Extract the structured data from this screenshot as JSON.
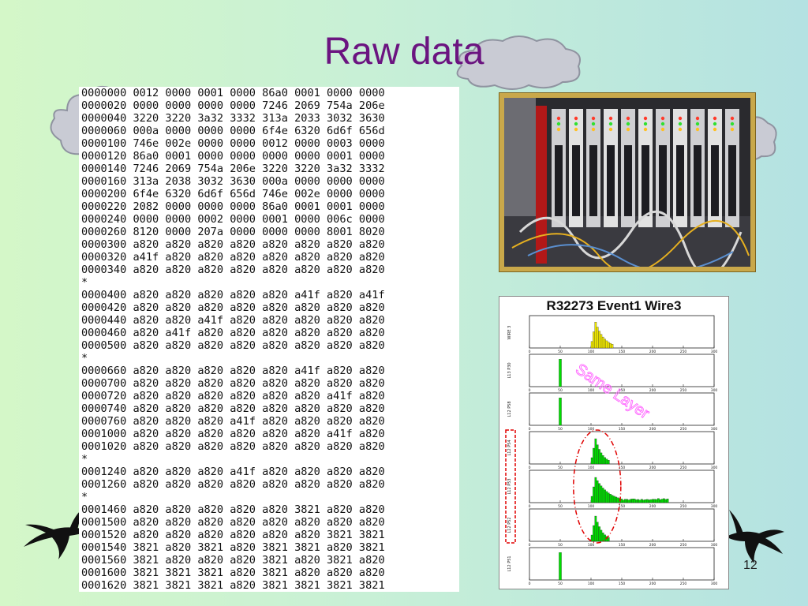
{
  "slide": {
    "title": "Raw data",
    "page_number": "12"
  },
  "hex_dump": [
    "0000000 0012 0000 0001 0000 86a0 0001 0000 0000",
    "0000020 0000 0000 0000 0000 7246 2069 754a 206e",
    "0000040 3220 3220 3a32 3332 313a 2033 3032 3630",
    "0000060 000a 0000 0000 0000 6f4e 6320 6d6f 656d",
    "0000100 746e 002e 0000 0000 0012 0000 0003 0000",
    "0000120 86a0 0001 0000 0000 0000 0000 0001 0000",
    "0000140 7246 2069 754a 206e 3220 3220 3a32 3332",
    "0000160 313a 2038 3032 3630 000a 0000 0000 0000",
    "0000200 6f4e 6320 6d6f 656d 746e 002e 0000 0000",
    "0000220 2082 0000 0000 0000 86a0 0001 0001 0000",
    "0000240 0000 0000 0002 0000 0001 0000 006c 0000",
    "0000260 8120 0000 207a 0000 0000 0000 8001 8020",
    "0000300 a820 a820 a820 a820 a820 a820 a820 a820",
    "0000320 a41f a820 a820 a820 a820 a820 a820 a820",
    "0000340 a820 a820 a820 a820 a820 a820 a820 a820",
    "*",
    "0000400 a820 a820 a820 a820 a820 a41f a820 a41f",
    "0000420 a820 a820 a820 a820 a820 a820 a820 a820",
    "0000440 a820 a820 a41f a820 a820 a820 a820 a820",
    "0000460 a820 a41f a820 a820 a820 a820 a820 a820",
    "0000500 a820 a820 a820 a820 a820 a820 a820 a820",
    "*",
    "0000660 a820 a820 a820 a820 a820 a41f a820 a820",
    "0000700 a820 a820 a820 a820 a820 a820 a820 a820",
    "0000720 a820 a820 a820 a820 a820 a820 a41f a820",
    "0000740 a820 a820 a820 a820 a820 a820 a820 a820",
    "0000760 a820 a820 a820 a41f a820 a820 a820 a820",
    "0001000 a820 a820 a820 a820 a820 a820 a41f a820",
    "0001020 a820 a820 a820 a820 a820 a820 a820 a820",
    "*",
    "0001240 a820 a820 a820 a41f a820 a820 a820 a820",
    "0001260 a820 a820 a820 a820 a820 a820 a820 a820",
    "*",
    "0001460 a820 a820 a820 a820 a820 3821 a820 a820",
    "0001500 a820 a820 a820 a820 a820 a820 a820 a820",
    "0001520 a820 a820 a820 a820 a820 a820 3821 3821",
    "0001540 3821 a820 3821 a820 3821 3821 a820 3821",
    "0001560 3821 a820 a820 a820 3821 a820 3821 a820",
    "0001600 3821 3821 3821 a820 3821 a820 a820 a820",
    "0001620 3821 3821 3821 a820 3821 3821 3821 3821"
  ],
  "plot": {
    "title": "R32273  Event1  Wire3",
    "annotation": "Same Layer",
    "annotation_color": "#ff66ff",
    "highlight_color": "#e00000",
    "x_ticks": [
      "0",
      "50",
      "100",
      "150",
      "200",
      "250",
      "300"
    ],
    "x_range": [
      0,
      300
    ],
    "panels": [
      {
        "label": "WIRE 3",
        "color": "#f2ea00",
        "shape": "yellow-peak"
      },
      {
        "label": "L13 P30",
        "color": "#00dd00",
        "shape": "spike"
      },
      {
        "label": "L12 P58",
        "color": "#00dd00",
        "shape": "spike"
      },
      {
        "label": "L12 P54",
        "color": "#00dd00",
        "shape": "peak"
      },
      {
        "label": "L12 P53",
        "color": "#00dd00",
        "shape": "peak-tail"
      },
      {
        "label": "L12 P52",
        "color": "#00dd00",
        "shape": "peak"
      },
      {
        "label": "L12 P51",
        "color": "#00dd00",
        "shape": "spike"
      }
    ]
  }
}
